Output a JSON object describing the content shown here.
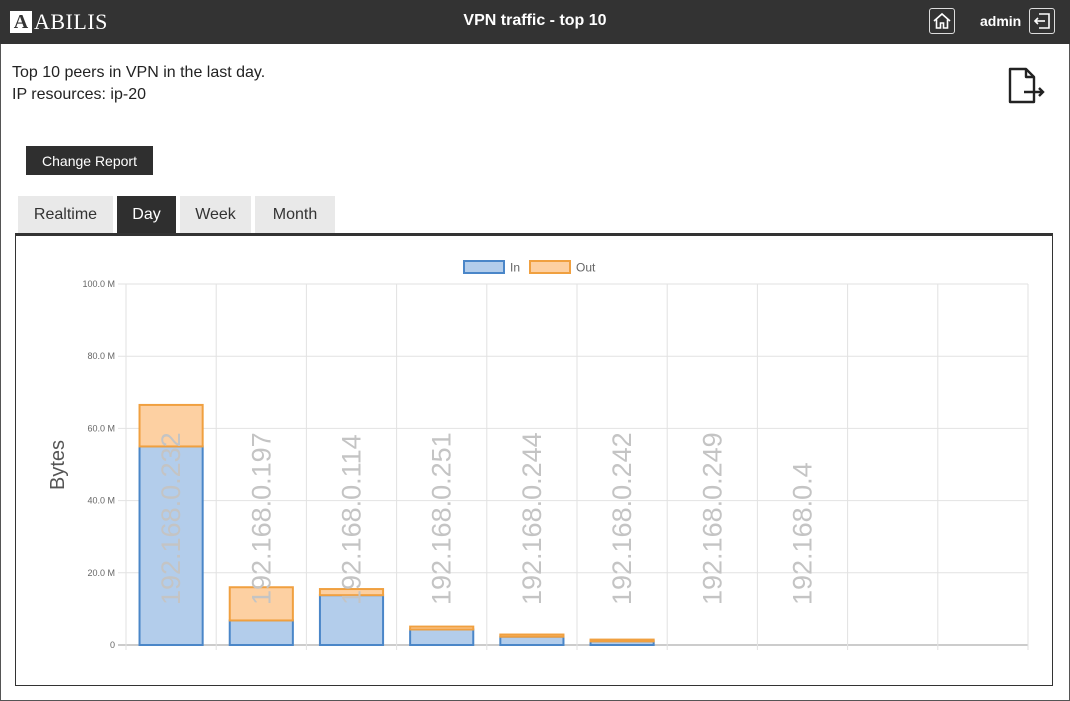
{
  "header": {
    "logo_letter": "A",
    "logo_text": "ABILIS",
    "title": "VPN traffic - top 10",
    "user": "admin"
  },
  "description": {
    "line1": "Top 10 peers in VPN in the last day.",
    "line2": "IP resources: ip-20"
  },
  "icons": {
    "home": "home-icon",
    "logout": "logout-icon",
    "export": "export-icon"
  },
  "change_report_label": "Change Report",
  "tabs": [
    {
      "label": "Realtime",
      "active": false
    },
    {
      "label": "Day",
      "active": true
    },
    {
      "label": "Week",
      "active": false
    },
    {
      "label": "Month",
      "active": false
    }
  ],
  "colors": {
    "header_bg": "#333333",
    "in_fill": "#b3cdeb",
    "in_stroke": "#4a86c8",
    "out_fill": "#fdd0a2",
    "out_stroke": "#f0a040",
    "label_gray": "#c4c4c4"
  },
  "chart_data": {
    "type": "bar",
    "stacked": true,
    "ylabel": "Bytes",
    "ylim": [
      0,
      100
    ],
    "yticks": [
      "0",
      "20.0 M",
      "40.0 M",
      "60.0 M",
      "80.0 M",
      "100.0 M"
    ],
    "legend_position": "top-center",
    "grid": true,
    "categories": [
      "192.168.0.232",
      "192.168.0.197",
      "192.168.0.114",
      "192.168.0.251",
      "192.168.0.244",
      "192.168.0.242",
      "192.168.0.249",
      "192.168.0.4",
      "",
      ""
    ],
    "series": [
      {
        "name": "In",
        "values": [
          55,
          6.8,
          13.8,
          4.3,
          2.3,
          1.0,
          0,
          0,
          0,
          0
        ]
      },
      {
        "name": "Out",
        "values": [
          11.5,
          9.2,
          1.7,
          0.8,
          0.6,
          0.5,
          0,
          0,
          0,
          0
        ]
      }
    ]
  }
}
